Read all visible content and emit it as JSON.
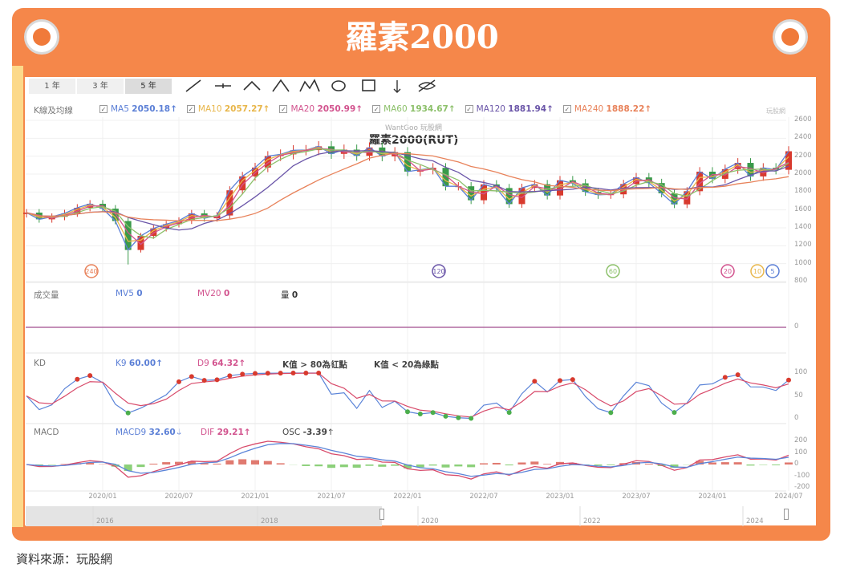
{
  "header": {
    "title": "羅素2000"
  },
  "toolbar": {
    "ranges": [
      "1 年",
      "3 年",
      "5 年"
    ],
    "active": "5 年",
    "tools": [
      "line-tool-icon",
      "horizontal-line-icon",
      "angle-icon",
      "triangle-pattern-icon",
      "wave-pattern-icon",
      "circle-tool-icon",
      "rectangle-tool-icon",
      "text-tool-icon",
      "hide-icon"
    ]
  },
  "watermark": {
    "site": "WantGoo 玩股網",
    "chart_title": "羅素2000(RUT)",
    "logo_text": "玩股網"
  },
  "legend": {
    "title": "K線及均線",
    "items": [
      {
        "name": "MA5",
        "value": "2050.18↑",
        "color": "#5b7fd6"
      },
      {
        "name": "MA10",
        "value": "2057.27↑",
        "color": "#e8b64a"
      },
      {
        "name": "MA20",
        "value": "2050.99↑",
        "color": "#d2538e"
      },
      {
        "name": "MA60",
        "value": "1934.67↑",
        "color": "#8cc06a"
      },
      {
        "name": "MA120",
        "value": "1881.94↑",
        "color": "#6a55a8"
      },
      {
        "name": "MA240",
        "value": "1888.22↑",
        "color": "#e8825a"
      }
    ]
  },
  "volume": {
    "title": "成交量",
    "mv5_label": "MV5",
    "mv5": "0",
    "mv20_label": "MV20",
    "mv20": "0",
    "vol_label": "量",
    "vol": "0"
  },
  "kd": {
    "title": "KD",
    "k_label": "K9",
    "k": "60.00↑",
    "d_label": "D9",
    "d": "64.32↑",
    "note_red": "K值 > 80為紅點",
    "note_green": "K值 < 20為綠點"
  },
  "macd": {
    "title": "MACD",
    "macd_label": "MACD9",
    "macd": "32.60↓",
    "dif_label": "DIF",
    "dif": "29.21↑",
    "osc_label": "OSC",
    "osc": "-3.39↑"
  },
  "navigator": {
    "years": [
      "2016",
      "2018",
      "2020",
      "2022",
      "2024"
    ]
  },
  "source": "資料來源：玩股網",
  "chart_data": {
    "type": "candlestick",
    "title": "羅素2000(RUT)",
    "x_ticks": [
      "2020/01",
      "2020/07",
      "2021/01",
      "2021/07",
      "2022/01",
      "2022/07",
      "2023/01",
      "2023/07",
      "2024/01",
      "2024/07"
    ],
    "price_ticks": [
      "2600",
      "2400",
      "2200",
      "2000",
      "1800",
      "1600",
      "1400",
      "1200",
      "1000",
      "800"
    ],
    "ylim": [
      800,
      2600
    ],
    "months_start": "2019/07",
    "monthly_close": [
      1570,
      1495,
      1523,
      1562,
      1624,
      1668,
      1614,
      1476,
      1153,
      1310,
      1394,
      1441,
      1480,
      1561,
      1507,
      1538,
      1819,
      1975,
      2073,
      2201,
      2220,
      2266,
      2268,
      2310,
      2226,
      2273,
      2204,
      2297,
      2198,
      2245,
      2028,
      2048,
      2070,
      1864,
      1864,
      1708,
      1885,
      1844,
      1665,
      1846,
      1887,
      1761,
      1931,
      1897,
      1802,
      1768,
      1774,
      1889,
      1963,
      1900,
      1785,
      1662,
      1809,
      2027,
      1947,
      2055,
      2125,
      1974,
      2070,
      2048,
      2255
    ],
    "period_low_2020_03": 991,
    "ma_markers": [
      "240",
      "120",
      "60",
      "20",
      "10",
      "5"
    ],
    "kd_ticks": [
      "100",
      "50",
      "0"
    ],
    "macd_ticks": [
      "200",
      "100",
      "0",
      "-100",
      "-200"
    ],
    "volume_ticks": [
      "0"
    ],
    "grid": true
  }
}
